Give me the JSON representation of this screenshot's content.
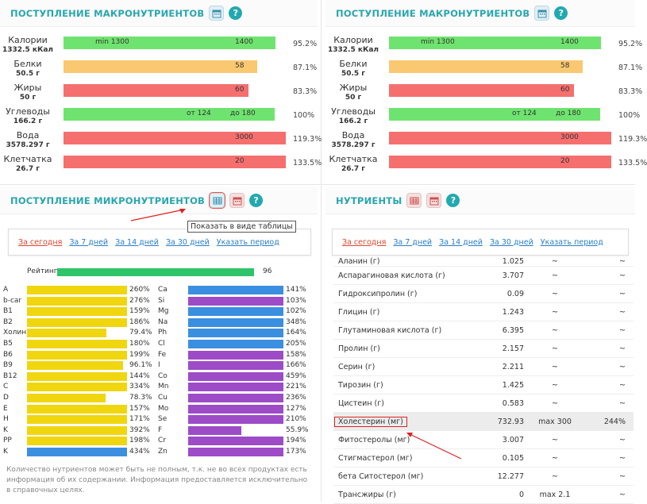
{
  "macro": {
    "title": "ПОСТУПЛЕНИЕ МАКРОНУТРИЕНТОВ",
    "rows": [
      {
        "name": "Калории",
        "amount": "1332.5 кКал",
        "marker": "min 1300",
        "target": "1400",
        "pct": "95.2%",
        "fill": 0.952,
        "color": "#6fe36f"
      },
      {
        "name": "Белки",
        "amount": "50.5 г",
        "marker": "",
        "target": "58",
        "pct": "87.1%",
        "fill": 0.871,
        "color": "#f9c870"
      },
      {
        "name": "Жиры",
        "amount": "50 г",
        "marker": "",
        "target": "60",
        "pct": "83.3%",
        "fill": 0.833,
        "color": "#f56f6f"
      },
      {
        "name": "Углеводы",
        "amount": "166.2 г",
        "marker": "от 124",
        "target": "до 180",
        "pct": "100%",
        "fill": 0.95,
        "color": "#6fe36f"
      },
      {
        "name": "Вода",
        "amount": "3578.297 г",
        "marker": "",
        "target": "3000",
        "pct": "119.3%",
        "fill": 1.0,
        "color": "#f56f6f"
      },
      {
        "name": "Клетчатка",
        "amount": "26.7 г",
        "marker": "",
        "target": "20",
        "pct": "133.5%",
        "fill": 1.0,
        "color": "#f56f6f"
      }
    ]
  },
  "micro": {
    "title": "ПОСТУПЛЕНИЕ МИКРОНУТРИЕНТОВ",
    "tooltip": "Показать в виде таблицы",
    "periods": [
      "За сегодня",
      "За 7 дней",
      "За 14 дней",
      "За 30 дней",
      "Указать период"
    ],
    "rating_label": "Рейтинг",
    "rating_value": "96",
    "vitamins": [
      {
        "n": "A",
        "p": "260%",
        "f": 1.0,
        "c": "#f0d60f"
      },
      {
        "n": "b-car",
        "p": "276%",
        "f": 1.0,
        "c": "#f0d60f"
      },
      {
        "n": "B1",
        "p": "159%",
        "f": 1.0,
        "c": "#f0d60f"
      },
      {
        "n": "B2",
        "p": "186%",
        "f": 1.0,
        "c": "#f0d60f"
      },
      {
        "n": "Холин",
        "p": "79.4%",
        "f": 0.794,
        "c": "#f0d60f"
      },
      {
        "n": "B5",
        "p": "180%",
        "f": 1.0,
        "c": "#f0d60f"
      },
      {
        "n": "B6",
        "p": "199%",
        "f": 1.0,
        "c": "#f0d60f"
      },
      {
        "n": "B9",
        "p": "96.1%",
        "f": 0.961,
        "c": "#f0d60f"
      },
      {
        "n": "B12",
        "p": "144%",
        "f": 1.0,
        "c": "#f0d60f"
      },
      {
        "n": "C",
        "p": "334%",
        "f": 1.0,
        "c": "#f0d60f"
      },
      {
        "n": "D",
        "p": "78.3%",
        "f": 0.783,
        "c": "#f0d60f"
      },
      {
        "n": "E",
        "p": "157%",
        "f": 1.0,
        "c": "#f0d60f"
      },
      {
        "n": "H",
        "p": "171%",
        "f": 1.0,
        "c": "#f0d60f"
      },
      {
        "n": "K",
        "p": "392%",
        "f": 1.0,
        "c": "#f0d60f"
      },
      {
        "n": "PP",
        "p": "198%",
        "f": 1.0,
        "c": "#f0d60f"
      },
      {
        "n": "K",
        "p": "434%",
        "f": 1.0,
        "c": "#3b8fe0"
      }
    ],
    "minerals": [
      {
        "n": "Ca",
        "p": "141%",
        "f": 1.0,
        "c": "#3b8fe0"
      },
      {
        "n": "Si",
        "p": "103%",
        "f": 1.0,
        "c": "#9d4bc7"
      },
      {
        "n": "Mg",
        "p": "102%",
        "f": 1.0,
        "c": "#3b8fe0"
      },
      {
        "n": "Na",
        "p": "348%",
        "f": 1.0,
        "c": "#3b8fe0"
      },
      {
        "n": "Ph",
        "p": "164%",
        "f": 1.0,
        "c": "#3b8fe0"
      },
      {
        "n": "Cl",
        "p": "205%",
        "f": 1.0,
        "c": "#3b8fe0"
      },
      {
        "n": "Fe",
        "p": "158%",
        "f": 1.0,
        "c": "#9d4bc7"
      },
      {
        "n": "I",
        "p": "166%",
        "f": 1.0,
        "c": "#9d4bc7"
      },
      {
        "n": "Co",
        "p": "459%",
        "f": 1.0,
        "c": "#9d4bc7"
      },
      {
        "n": "Mn",
        "p": "221%",
        "f": 1.0,
        "c": "#9d4bc7"
      },
      {
        "n": "Cu",
        "p": "236%",
        "f": 1.0,
        "c": "#9d4bc7"
      },
      {
        "n": "Mo",
        "p": "127%",
        "f": 1.0,
        "c": "#9d4bc7"
      },
      {
        "n": "Se",
        "p": "210%",
        "f": 1.0,
        "c": "#9d4bc7"
      },
      {
        "n": "F",
        "p": "55.9%",
        "f": 0.559,
        "c": "#9d4bc7"
      },
      {
        "n": "Cr",
        "p": "194%",
        "f": 1.0,
        "c": "#9d4bc7"
      },
      {
        "n": "Zn",
        "p": "173%",
        "f": 1.0,
        "c": "#9d4bc7"
      }
    ],
    "note": "Количество нутриентов может быть не полным, т.к. не во всех продуктах есть информация об их содержании. Информация предоставляется исключительно в справочных целях."
  },
  "nutrients": {
    "title": "НУТРИЕНТЫ",
    "periods": [
      "За сегодня",
      "За 7 дней",
      "За 14 дней",
      "За 30 дней",
      "Указать период"
    ],
    "rows": [
      {
        "name": "Аланин (г)",
        "value": "1.025",
        "norm": "~",
        "pct": "~"
      },
      {
        "name": "Аспарагиновая кислота (г)",
        "value": "3.707",
        "norm": "~",
        "pct": "~"
      },
      {
        "name": "Гидроксипролин (г)",
        "value": "0.09",
        "norm": "~",
        "pct": "~"
      },
      {
        "name": "Глицин (г)",
        "value": "1.243",
        "norm": "~",
        "pct": "~"
      },
      {
        "name": "Глутаминовая кислота (г)",
        "value": "6.395",
        "norm": "~",
        "pct": "~"
      },
      {
        "name": "Пролин (г)",
        "value": "2.157",
        "norm": "~",
        "pct": "~"
      },
      {
        "name": "Серин (г)",
        "value": "2.211",
        "norm": "~",
        "pct": "~"
      },
      {
        "name": "Тирозин (г)",
        "value": "1.425",
        "norm": "~",
        "pct": "~"
      },
      {
        "name": "Цистеин (г)",
        "value": "0.583",
        "norm": "~",
        "pct": "~"
      },
      {
        "name": "Холестерин (мг)",
        "value": "732.93",
        "norm": "max 300",
        "pct": "244%",
        "hl": true
      },
      {
        "name": "Фитостеролы (мг)",
        "value": "3.007",
        "norm": "~",
        "pct": "~"
      },
      {
        "name": "Стигмастерол (мг)",
        "value": "0.105",
        "norm": "~",
        "pct": "~"
      },
      {
        "name": "бета Ситостерол (мг)",
        "value": "12.277",
        "norm": "~",
        "pct": "~"
      },
      {
        "name": "Трансжиры (г)",
        "value": "0",
        "norm": "max 2.1",
        "pct": "~"
      }
    ]
  }
}
